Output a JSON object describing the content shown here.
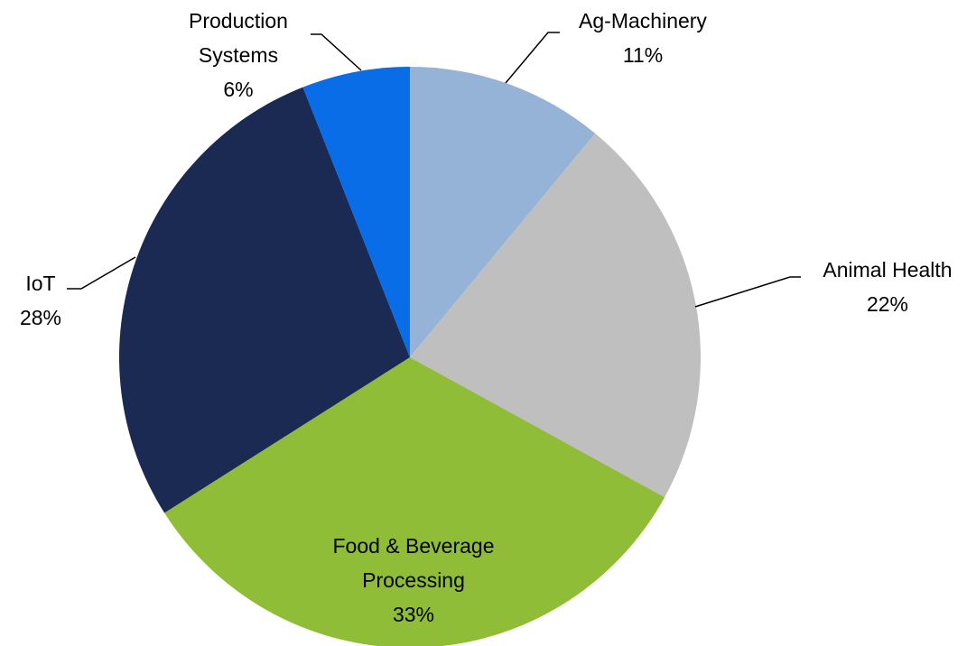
{
  "chart_data": {
    "type": "pie",
    "categories": [
      "Ag-Machinery",
      "Animal Health",
      "Food & Beverage Processing",
      "IoT",
      "Production Systems"
    ],
    "values": [
      11,
      22,
      33,
      28,
      6
    ],
    "value_labels": [
      "11%",
      "22%",
      "33%",
      "28%",
      "6%"
    ],
    "colors": [
      "#95b3d7",
      "#bfbfbf",
      "#8fbd38",
      "#1a2a52",
      "#086de6"
    ]
  }
}
